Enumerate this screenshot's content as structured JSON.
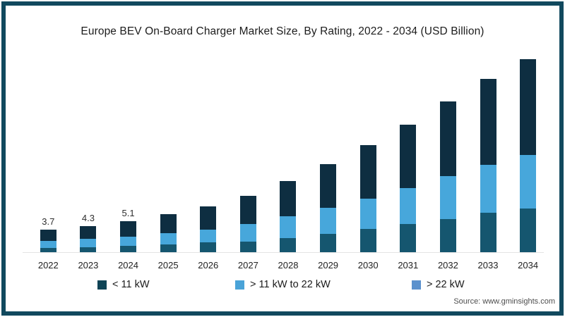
{
  "source": "Source: www.gminsights.com",
  "chart_data": {
    "type": "bar",
    "stacked": true,
    "title": "Europe BEV On-Board Charger Market Size, By Rating, 2022 - 2034 (USD Billion)",
    "unit": "USD Billion",
    "categories": [
      "2022",
      "2023",
      "2024",
      "2025",
      "2026",
      "2027",
      "2028",
      "2029",
      "2030",
      "2031",
      "2032",
      "2033",
      "2034"
    ],
    "series": [
      {
        "name": "< 11 kW",
        "key": "lt-11kw",
        "color": "#0e2e41",
        "values": [
          1.8,
          2.1,
          2.5,
          3.1,
          3.8,
          4.6,
          5.9,
          7.2,
          8.9,
          10.4,
          12.3,
          14.2,
          15.9
        ]
      },
      {
        "name": "> 11 kW to 22 kW",
        "key": "11kw-to-22kw",
        "color": "#47a7db",
        "values": [
          1.2,
          1.4,
          1.6,
          1.9,
          2.1,
          3.0,
          3.6,
          4.3,
          5.0,
          6.0,
          7.1,
          7.9,
          8.8
        ]
      },
      {
        "name": "> 22 kW",
        "key": "gt-22kw",
        "color": "#15566f",
        "values": [
          0.7,
          0.8,
          1.0,
          1.3,
          1.6,
          1.7,
          2.3,
          3.0,
          3.8,
          4.6,
          5.5,
          6.5,
          7.2
        ]
      }
    ],
    "stack_order_bottom_to_top": [
      "> 22 kW",
      "> 11 kW to 22 kW",
      "< 11 kW"
    ],
    "totals_labeled": {
      "2022": "3.7",
      "2023": "4.3",
      "2024": "5.1"
    },
    "estimated_totals": [
      3.7,
      4.3,
      5.1,
      6.3,
      7.5,
      9.3,
      11.8,
      14.5,
      17.7,
      21.0,
      24.9,
      28.6,
      31.9
    ],
    "ylim": [
      0,
      33
    ],
    "grid": false,
    "legend_position": "bottom"
  },
  "legend": {
    "items": [
      {
        "label": "< 11 kW",
        "swatch": "#0f4456"
      },
      {
        "label": "> 11 kW to 22 kW",
        "swatch": "#4aa3d8"
      },
      {
        "label": "> 22 kW",
        "swatch": "#5b91cd"
      }
    ]
  },
  "frame": {
    "border_color": "#11495e",
    "background": "#ffffff"
  }
}
